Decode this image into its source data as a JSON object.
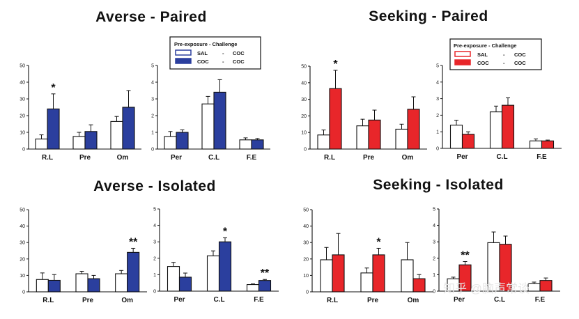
{
  "watermark": "知乎 @脑声常谈",
  "colors": {
    "blue": "#2b3f9e",
    "red": "#e8262a",
    "outline": "#111111",
    "open": "#ffffff"
  },
  "legend": {
    "title": "Pre-exposure - Challenge",
    "rows": [
      {
        "pre": "SAL",
        "sep": "-",
        "post": "COC"
      },
      {
        "pre": "COC",
        "sep": "-",
        "post": "COC"
      }
    ]
  },
  "chart_data": [
    {
      "title": "Averse - Paired",
      "color": "blue",
      "type": "bar",
      "charts": [
        {
          "ylim": [
            0,
            50
          ],
          "ticks": [
            "0",
            "10",
            "20",
            "30",
            "40",
            "50"
          ],
          "categories": [
            "R.L",
            "Pre",
            "Om"
          ],
          "series": [
            {
              "name": "SAL - COC",
              "values": [
                6,
                7.5,
                16.5
              ],
              "errors": [
                2.5,
                2.5,
                3
              ]
            },
            {
              "name": "COC - COC",
              "values": [
                24,
                10.5,
                25
              ],
              "errors": [
                9,
                4,
                10
              ]
            }
          ],
          "sig": [
            {
              "category": "R.L",
              "label": "*"
            }
          ]
        },
        {
          "ylim": [
            0,
            5
          ],
          "ticks": [
            "0",
            "1",
            "2",
            "3",
            "4",
            "5"
          ],
          "categories": [
            "Per",
            "C.L",
            "F.E"
          ],
          "series": [
            {
              "name": "SAL - COC",
              "values": [
                0.75,
                2.7,
                0.55
              ],
              "errors": [
                0.3,
                0.45,
                0.12
              ]
            },
            {
              "name": "COC - COC",
              "values": [
                1.0,
                3.4,
                0.55
              ],
              "errors": [
                0.15,
                0.75,
                0.08
              ]
            }
          ],
          "sig": []
        }
      ]
    },
    {
      "title": "Seeking - Paired",
      "color": "red",
      "type": "bar",
      "charts": [
        {
          "ylim": [
            0,
            50
          ],
          "ticks": [
            "0",
            "10",
            "20",
            "30",
            "40",
            "50"
          ],
          "categories": [
            "R.L",
            "Pre",
            "Om"
          ],
          "series": [
            {
              "name": "SAL - COC",
              "values": [
                8.5,
                14,
                12
              ],
              "errors": [
                3,
                4,
                3
              ]
            },
            {
              "name": "COC - COC",
              "values": [
                36.5,
                17.5,
                24
              ],
              "errors": [
                11,
                6,
                7.5
              ]
            }
          ],
          "sig": [
            {
              "category": "R.L",
              "label": "*"
            }
          ]
        },
        {
          "ylim": [
            0,
            5
          ],
          "ticks": [
            "0",
            "1",
            "2",
            "3",
            "4",
            "5"
          ],
          "categories": [
            "Per",
            "C.L",
            "F.E"
          ],
          "series": [
            {
              "name": "SAL - COC",
              "values": [
                1.4,
                2.2,
                0.45
              ],
              "errors": [
                0.3,
                0.35,
                0.12
              ]
            },
            {
              "name": "COC - COC",
              "values": [
                0.85,
                2.6,
                0.45
              ],
              "errors": [
                0.15,
                0.45,
                0.05
              ]
            }
          ],
          "sig": []
        }
      ]
    },
    {
      "title": "Averse - Isolated",
      "color": "blue",
      "type": "bar",
      "charts": [
        {
          "ylim": [
            0,
            50
          ],
          "ticks": [
            "0",
            "10",
            "20",
            "30",
            "40",
            "50"
          ],
          "categories": [
            "R.L",
            "Pre",
            "Om"
          ],
          "series": [
            {
              "name": "SAL - COC",
              "values": [
                7.5,
                11,
                11
              ],
              "errors": [
                4,
                1.5,
                2
              ]
            },
            {
              "name": "COC - COC",
              "values": [
                7,
                8,
                24
              ],
              "errors": [
                3.5,
                2,
                2.5
              ]
            }
          ],
          "sig": [
            {
              "category": "Om",
              "label": "**"
            }
          ]
        },
        {
          "ylim": [
            0,
            5
          ],
          "ticks": [
            "0",
            "1",
            "2",
            "3",
            "4",
            "5"
          ],
          "categories": [
            "Per",
            "C.L",
            "F.E"
          ],
          "series": [
            {
              "name": "SAL - COC",
              "values": [
                1.5,
                2.15,
                0.4
              ],
              "errors": [
                0.25,
                0.3,
                0.04
              ]
            },
            {
              "name": "COC - COC",
              "values": [
                0.85,
                3.0,
                0.65
              ],
              "errors": [
                0.25,
                0.25,
                0.06
              ]
            }
          ],
          "sig": [
            {
              "category": "C.L",
              "label": "*"
            },
            {
              "category": "F.E",
              "label": "**"
            }
          ]
        }
      ]
    },
    {
      "title": "Seeking - Isolated",
      "color": "red",
      "type": "bar",
      "charts": [
        {
          "ylim": [
            0,
            50
          ],
          "ticks": [
            "0",
            "10",
            "20",
            "30",
            "40",
            "50"
          ],
          "categories": [
            "R.L",
            "Pre",
            "Om"
          ],
          "series": [
            {
              "name": "SAL - COC",
              "values": [
                19.5,
                11.5,
                19.5
              ],
              "errors": [
                7.5,
                3,
                10.5
              ]
            },
            {
              "name": "COC - COC",
              "values": [
                22.5,
                22.5,
                8
              ],
              "errors": [
                13,
                4,
                2.5
              ]
            }
          ],
          "sig": [
            {
              "category": "Pre",
              "label": "*"
            }
          ]
        },
        {
          "ylim": [
            0,
            5
          ],
          "ticks": [
            "0",
            "1",
            "2",
            "3",
            "4",
            "5"
          ],
          "categories": [
            "Per",
            "C.L",
            "F.E"
          ],
          "series": [
            {
              "name": "SAL - COC",
              "values": [
                0.75,
                2.95,
                0.45
              ],
              "errors": [
                0.1,
                0.65,
                0.1
              ]
            },
            {
              "name": "COC - COC",
              "values": [
                1.6,
                2.85,
                0.65
              ],
              "errors": [
                0.2,
                0.5,
                0.15
              ]
            }
          ],
          "sig": [
            {
              "category": "Per",
              "label": "**"
            }
          ]
        }
      ]
    }
  ]
}
